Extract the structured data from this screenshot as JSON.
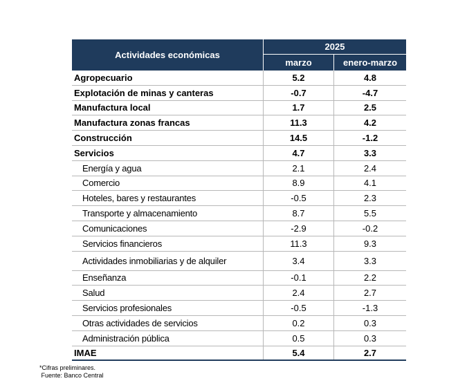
{
  "header": {
    "activities_label": "Actividades económicas",
    "year": "2025",
    "col_month": "marzo",
    "col_range": "enero-marzo"
  },
  "rows": [
    {
      "label": "Agropecuario",
      "marzo": "5.2",
      "enero_marzo": "4.8",
      "bold": true
    },
    {
      "label": "Explotación de minas y canteras",
      "marzo": "-0.7",
      "enero_marzo": "-4.7",
      "bold": true
    },
    {
      "label": "Manufactura local",
      "marzo": "1.7",
      "enero_marzo": "2.5",
      "bold": true
    },
    {
      "label": "Manufactura zonas francas",
      "marzo": "11.3",
      "enero_marzo": "4.2",
      "bold": true
    },
    {
      "label": "Construcción",
      "marzo": "14.5",
      "enero_marzo": "-1.2",
      "bold": true
    },
    {
      "label": "Servicios",
      "marzo": "4.7",
      "enero_marzo": "3.3",
      "bold": true
    },
    {
      "label": "Energía y agua",
      "marzo": "2.1",
      "enero_marzo": "2.4",
      "bold": false
    },
    {
      "label": "Comercio",
      "marzo": "8.9",
      "enero_marzo": "4.1",
      "bold": false
    },
    {
      "label": "Hoteles, bares y restaurantes",
      "marzo": "-0.5",
      "enero_marzo": "2.3",
      "bold": false
    },
    {
      "label": "Transporte y almacenamiento",
      "marzo": "8.7",
      "enero_marzo": "5.5",
      "bold": false
    },
    {
      "label": "Comunicaciones",
      "marzo": "-2.9",
      "enero_marzo": "-0.2",
      "bold": false
    },
    {
      "label": "Servicios financieros",
      "marzo": "11.3",
      "enero_marzo": "9.3",
      "bold": false
    },
    {
      "label": "Actividades inmobiliarias y de alquiler",
      "marzo": "3.4",
      "enero_marzo": "3.3",
      "bold": false
    },
    {
      "label": "Enseñanza",
      "marzo": "-0.1",
      "enero_marzo": "2.2",
      "bold": false
    },
    {
      "label": "Salud",
      "marzo": "2.4",
      "enero_marzo": "2.7",
      "bold": false
    },
    {
      "label": "Servicios profesionales",
      "marzo": "-0.5",
      "enero_marzo": "-1.3",
      "bold": false
    },
    {
      "label": "Otras actividades de servicios",
      "marzo": "0.2",
      "enero_marzo": "0.3",
      "bold": false
    },
    {
      "label": "Administración pública",
      "marzo": "0.5",
      "enero_marzo": "0.3",
      "bold": false
    },
    {
      "label": "IMAE",
      "marzo": "5.4",
      "enero_marzo": "2.7",
      "bold": true
    }
  ],
  "notes": {
    "preliminary": "*Cifras preliminares.",
    "source": " Fuente: Banco Central"
  },
  "colors": {
    "header_bg": "#1f3b5c",
    "header_text": "#ffffff",
    "grid": "#b7b7b7"
  }
}
